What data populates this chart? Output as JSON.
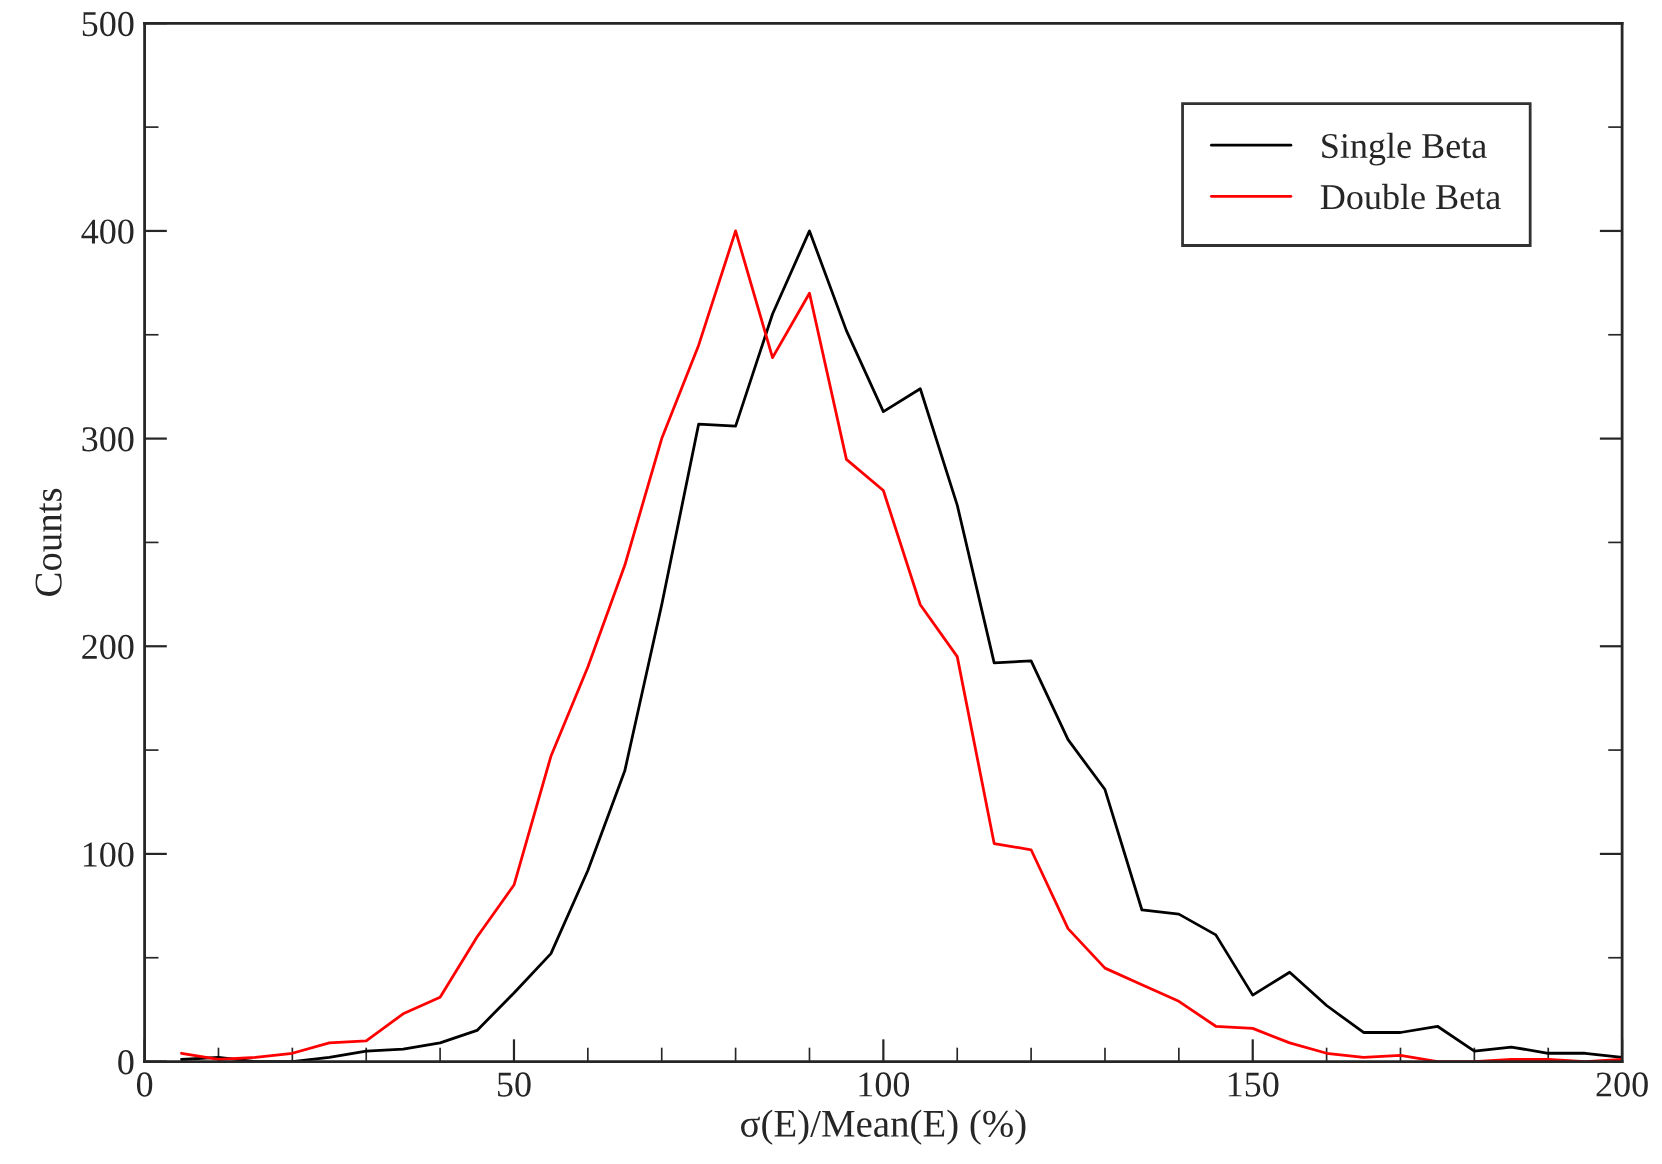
{
  "chart_data": {
    "type": "line",
    "xlabel": "σ(E)/Mean(E) (%)",
    "ylabel": "Counts",
    "x": [
      5,
      10,
      15,
      20,
      25,
      30,
      35,
      40,
      45,
      50,
      55,
      60,
      65,
      70,
      75,
      80,
      85,
      90,
      95,
      100,
      105,
      110,
      115,
      120,
      125,
      130,
      135,
      140,
      145,
      150,
      155,
      160,
      165,
      170,
      175,
      180,
      185,
      190,
      195,
      200
    ],
    "series": [
      {
        "name": "Single Beta",
        "color": "#000000",
        "values": [
          1,
          2,
          0,
          0,
          2,
          5,
          6,
          9,
          15,
          33,
          52,
          92,
          140,
          220,
          307,
          306,
          360,
          400,
          352,
          313,
          324,
          268,
          192,
          193,
          155,
          131,
          73,
          71,
          61,
          32,
          43,
          27,
          14,
          14,
          17,
          5,
          7,
          4,
          4,
          2
        ]
      },
      {
        "name": "Double Beta",
        "color": "#ff0000",
        "values": [
          4,
          1,
          2,
          4,
          9,
          10,
          23,
          31,
          60,
          85,
          147,
          190,
          239,
          300,
          345,
          400,
          339,
          370,
          290,
          275,
          220,
          195,
          105,
          102,
          64,
          45,
          37,
          29,
          17,
          16,
          9,
          4,
          2,
          3,
          0,
          0,
          1,
          1,
          0,
          1
        ]
      }
    ],
    "xlim": [
      0,
      200
    ],
    "ylim": [
      0,
      500
    ],
    "xticks": [
      0,
      50,
      100,
      150,
      200
    ],
    "yticks": [
      0,
      100,
      200,
      300,
      400,
      500
    ],
    "grid": false,
    "legend": "top right",
    "marker": "none",
    "line_style": "solid"
  }
}
